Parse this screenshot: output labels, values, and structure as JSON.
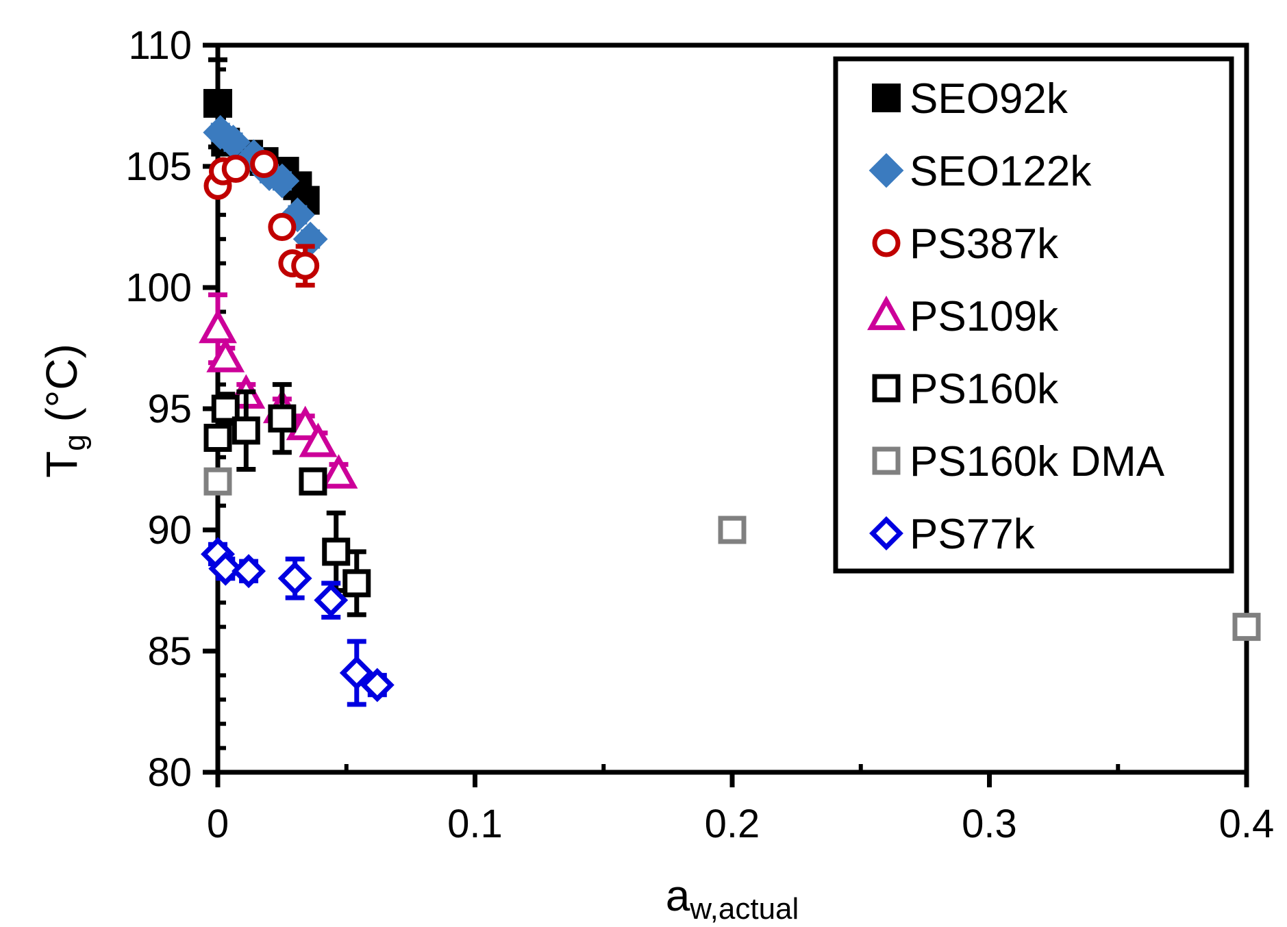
{
  "chart_data": {
    "type": "scatter",
    "title": "",
    "xlabel": "a",
    "xlabel_sub": "w,actual",
    "ylabel": "T",
    "ylabel_sub": "g",
    "ylabel_unit": " (°C)",
    "xlim": [
      0,
      0.4
    ],
    "ylim": [
      80,
      110
    ],
    "xticks": [
      0,
      0.1,
      0.2,
      0.3,
      0.4
    ],
    "xtick_labels": [
      "0",
      "0.1",
      "0.2",
      "0.3",
      "0.4"
    ],
    "yticks": [
      80,
      85,
      90,
      95,
      100,
      105,
      110
    ],
    "ytick_labels": [
      "80",
      "85",
      "90",
      "95",
      "100",
      "105",
      "110"
    ],
    "grid": false,
    "legend_position": "top-right",
    "series": [
      {
        "name": "SEO92k",
        "marker": "square-filled",
        "color": "#000000",
        "points": [
          {
            "x": 0.0,
            "y": 107.6,
            "err": 1.8
          },
          {
            "x": 0.003,
            "y": 106.0,
            "err": 0.3
          },
          {
            "x": 0.012,
            "y": 105.5,
            "err": 0.3
          },
          {
            "x": 0.018,
            "y": 105.2,
            "err": 0.3
          },
          {
            "x": 0.026,
            "y": 104.8,
            "err": 0.3
          },
          {
            "x": 0.031,
            "y": 104.2,
            "err": 0.3
          },
          {
            "x": 0.034,
            "y": 103.6,
            "err": 0.3
          }
        ]
      },
      {
        "name": "SEO122k",
        "marker": "diamond-filled",
        "color": "#3b7bbf",
        "points": [
          {
            "x": 0.001,
            "y": 106.4,
            "err": 0.3
          },
          {
            "x": 0.006,
            "y": 106.0,
            "err": 0.3
          },
          {
            "x": 0.014,
            "y": 105.4,
            "err": 0.3
          },
          {
            "x": 0.02,
            "y": 104.7,
            "err": 0.3
          },
          {
            "x": 0.025,
            "y": 104.4,
            "err": 0.3
          },
          {
            "x": 0.031,
            "y": 103.0,
            "err": 0.3
          },
          {
            "x": 0.036,
            "y": 102.0,
            "err": 0.3
          }
        ]
      },
      {
        "name": "PS387k",
        "marker": "circle-open",
        "color": "#c00000",
        "points": [
          {
            "x": 0.0,
            "y": 104.2,
            "err": 0.3
          },
          {
            "x": 0.002,
            "y": 104.8,
            "err": 0.3
          },
          {
            "x": 0.007,
            "y": 104.9,
            "err": 0.3
          },
          {
            "x": 0.018,
            "y": 105.1,
            "err": 0.3
          },
          {
            "x": 0.025,
            "y": 102.5,
            "err": 0.3
          },
          {
            "x": 0.029,
            "y": 101.0,
            "err": 0.3
          },
          {
            "x": 0.034,
            "y": 100.9,
            "err": 0.8
          }
        ]
      },
      {
        "name": "PS109k",
        "marker": "triangle-open",
        "color": "#cc0099",
        "points": [
          {
            "x": 0.0,
            "y": 98.3,
            "err": 1.4
          },
          {
            "x": 0.003,
            "y": 97.1,
            "err": 0.4
          },
          {
            "x": 0.011,
            "y": 95.6,
            "err": 0.4
          },
          {
            "x": 0.025,
            "y": 95.0,
            "err": 0.4
          },
          {
            "x": 0.034,
            "y": 94.3,
            "err": 0.4
          },
          {
            "x": 0.039,
            "y": 93.6,
            "err": 0.4
          },
          {
            "x": 0.047,
            "y": 92.3,
            "err": 0.4
          }
        ]
      },
      {
        "name": "PS160k",
        "marker": "square-open",
        "color": "#000000",
        "points": [
          {
            "x": 0.0,
            "y": 93.8,
            "err": 0.4
          },
          {
            "x": 0.003,
            "y": 95.0,
            "err": 0.6
          },
          {
            "x": 0.011,
            "y": 94.1,
            "err": 1.6
          },
          {
            "x": 0.025,
            "y": 94.6,
            "err": 1.4
          },
          {
            "x": 0.037,
            "y": 92.0,
            "err": 0.3
          },
          {
            "x": 0.046,
            "y": 89.1,
            "err": 1.6
          },
          {
            "x": 0.054,
            "y": 87.8,
            "err": 1.3
          }
        ]
      },
      {
        "name": "PS160k DMA",
        "marker": "square-open",
        "color": "#808080",
        "points": [
          {
            "x": 0.0,
            "y": 92.0,
            "err": 0
          },
          {
            "x": 0.2,
            "y": 90.0,
            "err": 0
          },
          {
            "x": 0.4,
            "y": 86.0,
            "err": 0
          }
        ]
      },
      {
        "name": "PS77k",
        "marker": "diamond-open",
        "color": "#0000e0",
        "points": [
          {
            "x": 0.0,
            "y": 89.0,
            "err": 0.4
          },
          {
            "x": 0.003,
            "y": 88.4,
            "err": 0.4
          },
          {
            "x": 0.012,
            "y": 88.3,
            "err": 0.4
          },
          {
            "x": 0.03,
            "y": 88.0,
            "err": 0.8
          },
          {
            "x": 0.044,
            "y": 87.1,
            "err": 0.7
          },
          {
            "x": 0.054,
            "y": 84.1,
            "err": 1.3
          },
          {
            "x": 0.062,
            "y": 83.6,
            "err": 0.4
          }
        ]
      }
    ]
  }
}
